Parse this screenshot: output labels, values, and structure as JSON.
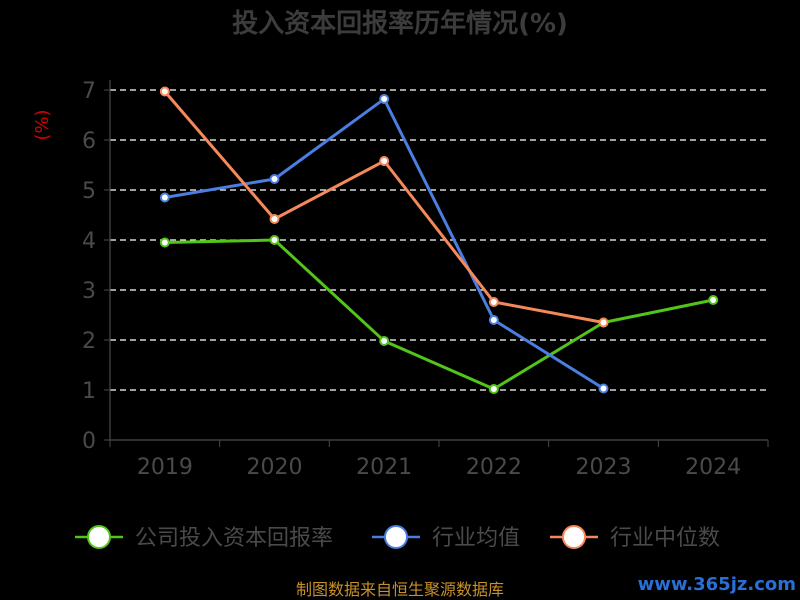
{
  "chart_data": {
    "type": "line",
    "title": "投入资本回报率历年情况(%)",
    "ylabel": "(%)",
    "xlabel": "",
    "categories": [
      "2019",
      "2020",
      "2021",
      "2022",
      "2023",
      "2024"
    ],
    "ylim": [
      0,
      7
    ],
    "yticks": [
      0,
      1,
      2,
      3,
      4,
      5,
      6,
      7
    ],
    "grid": true,
    "legend_position": "bottom",
    "series": [
      {
        "name": "公司投入资本回报率",
        "color": "#52c41a",
        "values": [
          3.95,
          4.0,
          1.98,
          1.02,
          2.35,
          2.8
        ]
      },
      {
        "name": "行业均值",
        "color": "#4a7ee0",
        "values": [
          4.85,
          5.22,
          6.82,
          2.4,
          1.03,
          null
        ]
      },
      {
        "name": "行业中位数",
        "color": "#f5895a",
        "values": [
          6.97,
          4.42,
          5.58,
          2.76,
          2.35,
          null
        ]
      }
    ]
  },
  "footer": {
    "source": "制图数据来自恒生聚源数据库",
    "watermark": "www.365jz.com"
  }
}
